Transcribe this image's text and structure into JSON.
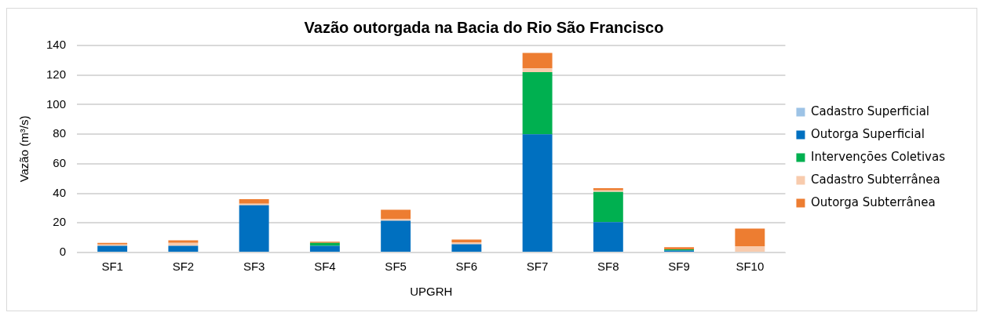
{
  "chart_data": {
    "type": "bar",
    "stacked": true,
    "title": "Vazão outorgada na Bacia do Rio São Francisco",
    "xlabel": "UPGRH",
    "ylabel": "Vazão (m³/s)",
    "categories": [
      "SF1",
      "SF2",
      "SF3",
      "SF4",
      "SF5",
      "SF6",
      "SF7",
      "SF8",
      "SF9",
      "SF10"
    ],
    "series": [
      {
        "name": "Cadastro Superficial",
        "color": "#9dc3e6",
        "values": [
          0,
          0,
          0,
          0,
          0,
          0,
          0,
          0,
          0,
          0
        ]
      },
      {
        "name": "Outorga Superficial",
        "color": "#0070c0",
        "values": [
          4.5,
          4.5,
          32,
          4.5,
          21.5,
          5.6,
          80,
          20.5,
          1.3,
          0
        ]
      },
      {
        "name": "Intervenções Coletivas",
        "color": "#00b050",
        "values": [
          0,
          0,
          0,
          2,
          0,
          0,
          42,
          20.5,
          0.8,
          0
        ]
      },
      {
        "name": "Cadastro Subterrânea",
        "color": "#f8cbad",
        "values": [
          1,
          2,
          1,
          0,
          1,
          1.3,
          2.5,
          1,
          0,
          4.2
        ]
      },
      {
        "name": "Outorga Subterrânea",
        "color": "#ed7d31",
        "values": [
          1,
          1.7,
          3,
          0.8,
          6.4,
          1.9,
          10.5,
          1.5,
          1.5,
          12
        ]
      }
    ],
    "ylim": [
      0,
      140
    ],
    "yticks": [
      0,
      20,
      40,
      60,
      80,
      100,
      120,
      140
    ],
    "grid": "y",
    "legend": "right"
  }
}
